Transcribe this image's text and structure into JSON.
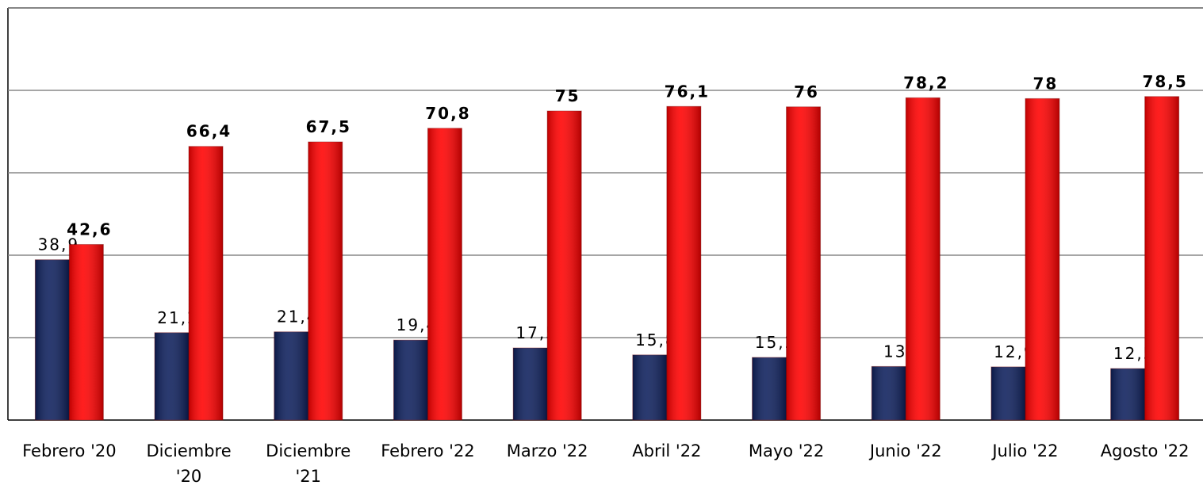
{
  "chart_data": {
    "type": "bar",
    "categories": [
      "Febrero '20",
      "Diciembre '20",
      "Diciembre '21",
      "Febrero '22",
      "Marzo '22",
      "Abril '22",
      "Mayo '22",
      "Junio '22",
      "Julio '22",
      "Agosto '22"
    ],
    "series": [
      {
        "color": "#0d1f5c",
        "values": [
          38.9,
          21.2,
          21.4,
          19.4,
          17.5,
          15.8,
          15.2,
          13,
          12.9,
          12.5
        ],
        "value_labels": [
          "38,9",
          "21,2",
          "21,4",
          "19,4",
          "17,5",
          "15,8",
          "15,2",
          "13",
          "12,9",
          "12,5"
        ]
      },
      {
        "color": "#ff0000",
        "values": [
          42.6,
          66.4,
          67.5,
          70.8,
          75,
          76.1,
          76,
          78.2,
          78,
          78.5
        ],
        "value_labels": [
          "42,6",
          "66,4",
          "67,5",
          "70,8",
          "75",
          "76,1",
          "76",
          "78,2",
          "78",
          "78,5"
        ]
      }
    ],
    "ylim": [
      0,
      100
    ],
    "yticks": [
      0,
      20,
      40,
      60,
      80,
      100
    ],
    "grid": true
  }
}
